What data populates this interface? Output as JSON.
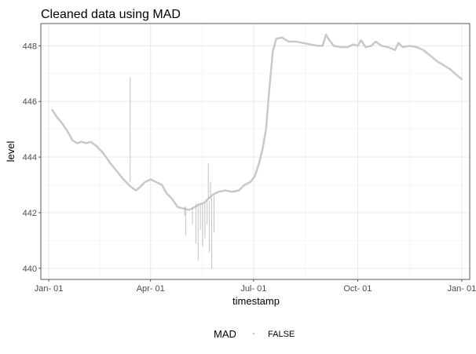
{
  "chart_data": {
    "type": "scatter",
    "title": "Cleaned data using MAD",
    "xlabel": "timestamp",
    "ylabel": "level",
    "x_type": "date",
    "xlim": [
      "2020-12-25",
      "2022-01-08"
    ],
    "ylim": [
      439.6,
      448.8
    ],
    "x_ticks": [
      {
        "date": "2021-01-01",
        "label": "Jan- 01"
      },
      {
        "date": "2021-04-01",
        "label": "Apr- 01"
      },
      {
        "date": "2021-07-01",
        "label": "Jul- 01"
      },
      {
        "date": "2021-10-01",
        "label": "Oct- 01"
      },
      {
        "date": "2022-01-01",
        "label": "Jan- 01"
      }
    ],
    "y_ticks": [
      440,
      442,
      444,
      446,
      448
    ],
    "grid": true,
    "legend": {
      "title": "MAD",
      "position": "bottom",
      "entries": [
        "FALSE"
      ]
    },
    "series": [
      {
        "name": "FALSE",
        "color": "#c8c8c8",
        "points": [
          [
            "2021-01-04",
            445.7
          ],
          [
            "2021-01-08",
            445.45
          ],
          [
            "2021-01-13",
            445.2
          ],
          [
            "2021-01-18",
            444.9
          ],
          [
            "2021-01-22",
            444.6
          ],
          [
            "2021-01-26",
            444.5
          ],
          [
            "2021-01-30",
            444.55
          ],
          [
            "2021-02-03",
            444.5
          ],
          [
            "2021-02-07",
            444.55
          ],
          [
            "2021-02-12",
            444.4
          ],
          [
            "2021-02-18",
            444.15
          ],
          [
            "2021-02-24",
            443.8
          ],
          [
            "2021-03-02",
            443.5
          ],
          [
            "2021-03-08",
            443.2
          ],
          [
            "2021-03-14",
            442.95
          ],
          [
            "2021-03-19",
            442.8
          ],
          [
            "2021-03-22",
            442.9
          ],
          [
            "2021-03-27",
            443.1
          ],
          [
            "2021-04-01",
            443.2
          ],
          [
            "2021-04-06",
            443.1
          ],
          [
            "2021-04-11",
            443.0
          ],
          [
            "2021-04-15",
            442.7
          ],
          [
            "2021-04-20",
            442.5
          ],
          [
            "2021-04-25",
            442.2
          ],
          [
            "2021-04-30",
            442.15
          ],
          [
            "2021-05-05",
            442.1
          ],
          [
            "2021-05-10",
            442.2
          ],
          [
            "2021-05-14",
            442.3
          ],
          [
            "2021-05-18",
            442.35
          ],
          [
            "2021-05-22",
            442.5
          ],
          [
            "2021-05-26",
            442.65
          ],
          [
            "2021-05-31",
            442.75
          ],
          [
            "2021-06-06",
            442.8
          ],
          [
            "2021-06-12",
            442.75
          ],
          [
            "2021-06-18",
            442.8
          ],
          [
            "2021-06-23",
            443.0
          ],
          [
            "2021-06-28",
            443.1
          ],
          [
            "2021-07-02",
            443.3
          ],
          [
            "2021-07-06",
            443.8
          ],
          [
            "2021-07-09",
            444.3
          ],
          [
            "2021-07-12",
            445.0
          ],
          [
            "2021-07-15",
            446.5
          ],
          [
            "2021-07-18",
            447.8
          ],
          [
            "2021-07-21",
            448.25
          ],
          [
            "2021-07-26",
            448.3
          ],
          [
            "2021-08-01",
            448.15
          ],
          [
            "2021-08-08",
            448.15
          ],
          [
            "2021-08-14",
            448.1
          ],
          [
            "2021-08-20",
            448.05
          ],
          [
            "2021-08-27",
            448.0
          ],
          [
            "2021-08-31",
            448.0
          ],
          [
            "2021-09-03",
            448.4
          ],
          [
            "2021-09-06",
            448.2
          ],
          [
            "2021-09-10",
            448.0
          ],
          [
            "2021-09-16",
            447.95
          ],
          [
            "2021-09-22",
            447.95
          ],
          [
            "2021-09-27",
            448.05
          ],
          [
            "2021-10-01",
            448.0
          ],
          [
            "2021-10-04",
            448.2
          ],
          [
            "2021-10-08",
            447.95
          ],
          [
            "2021-10-13",
            448.0
          ],
          [
            "2021-10-17",
            448.15
          ],
          [
            "2021-10-22",
            448.0
          ],
          [
            "2021-10-28",
            447.95
          ],
          [
            "2021-11-03",
            447.85
          ],
          [
            "2021-11-06",
            448.1
          ],
          [
            "2021-11-10",
            447.95
          ],
          [
            "2021-11-16",
            448.0
          ],
          [
            "2021-11-22",
            447.95
          ],
          [
            "2021-11-28",
            447.85
          ],
          [
            "2021-12-04",
            447.65
          ],
          [
            "2021-12-10",
            447.45
          ],
          [
            "2021-12-16",
            447.3
          ],
          [
            "2021-12-22",
            447.15
          ],
          [
            "2021-12-26",
            447.0
          ],
          [
            "2022-01-01",
            446.8
          ]
        ],
        "spikes": [
          {
            "date": "2021-03-14",
            "from": 443.1,
            "to": 446.85
          },
          {
            "date": "2021-05-01",
            "from": 442.2,
            "to": 441.9
          },
          {
            "date": "2021-05-02",
            "from": 442.2,
            "to": 441.2
          },
          {
            "date": "2021-05-08",
            "from": 442.2,
            "to": 441.6
          },
          {
            "date": "2021-05-11",
            "from": 442.3,
            "to": 440.9
          },
          {
            "date": "2021-05-13",
            "from": 442.3,
            "to": 440.3
          },
          {
            "date": "2021-05-15",
            "from": 442.3,
            "to": 441.4
          },
          {
            "date": "2021-05-17",
            "from": 442.3,
            "to": 440.8
          },
          {
            "date": "2021-05-19",
            "from": 442.35,
            "to": 441.1
          },
          {
            "date": "2021-05-21",
            "from": 442.4,
            "to": 441.6
          },
          {
            "date": "2021-05-23",
            "from": 442.4,
            "to": 440.6
          },
          {
            "date": "2021-05-25",
            "from": 442.5,
            "to": 440.0
          },
          {
            "date": "2021-05-27",
            "from": 442.6,
            "to": 441.3
          },
          {
            "date": "2021-05-22",
            "from": 442.5,
            "to": 443.75
          },
          {
            "date": "2021-05-24",
            "from": 442.5,
            "to": 443.1
          }
        ]
      }
    ]
  }
}
